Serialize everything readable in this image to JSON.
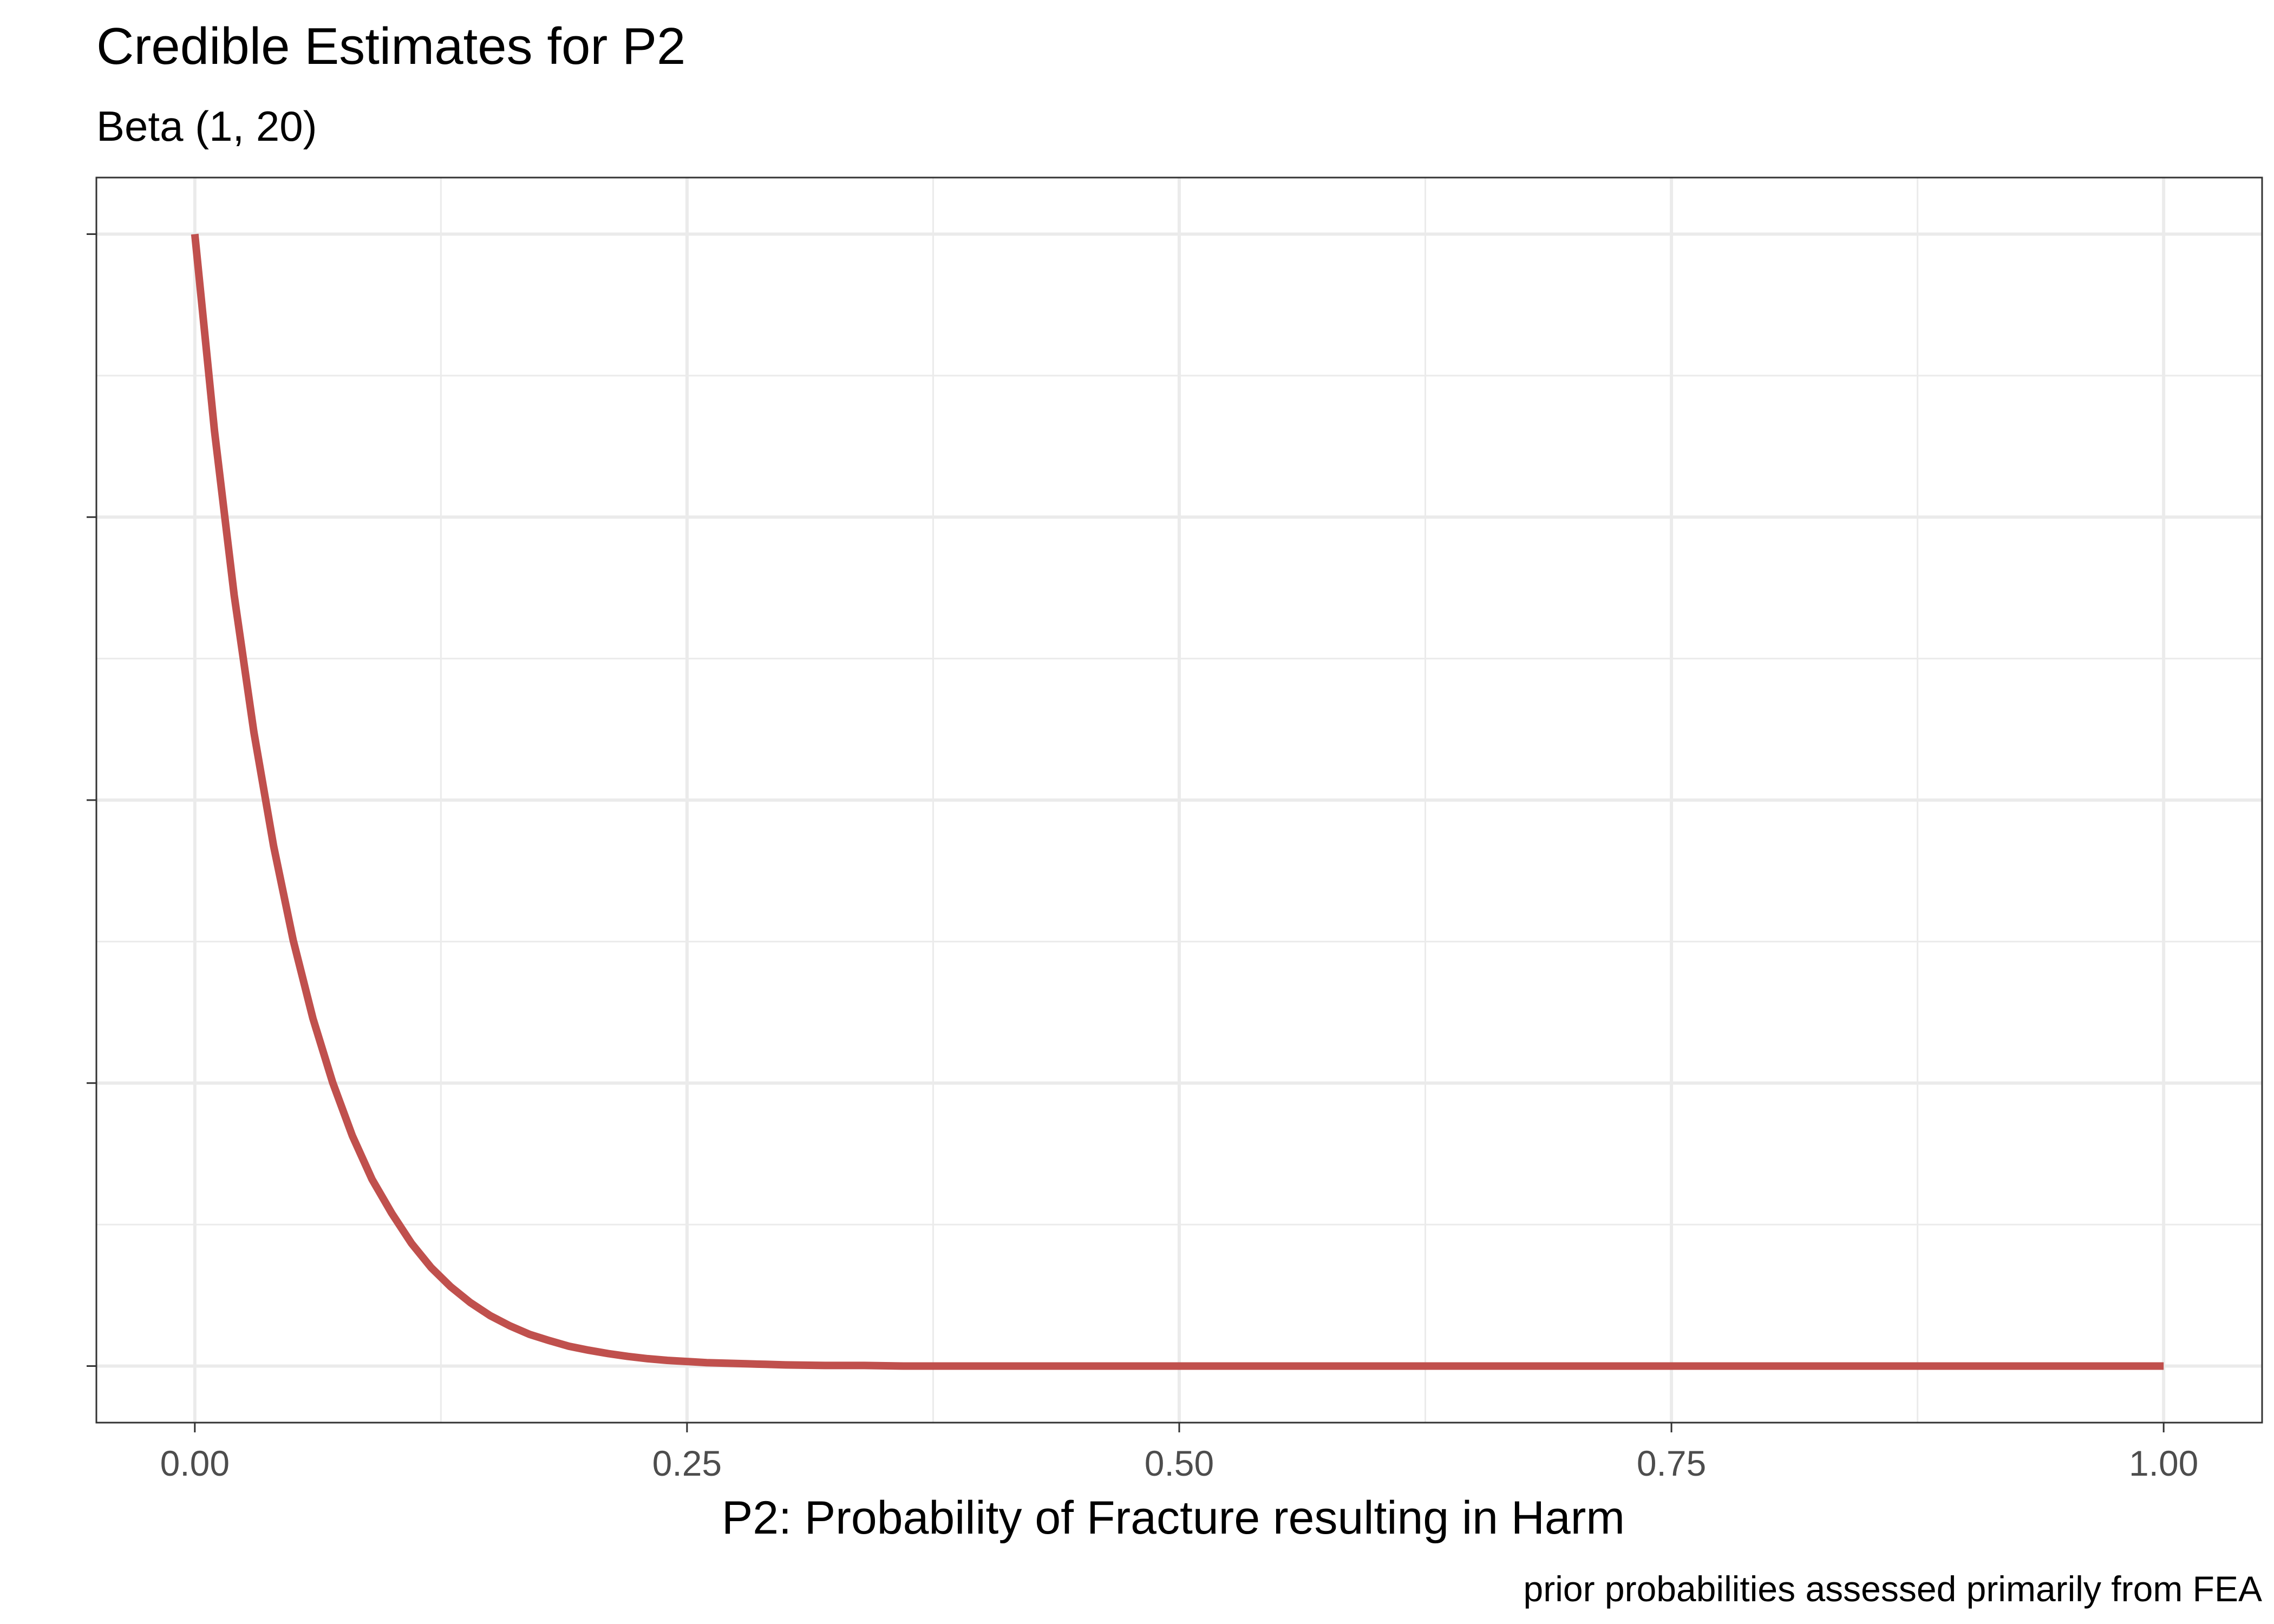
{
  "chart_data": {
    "type": "line",
    "title": "Credible Estimates for P2",
    "subtitle": "Beta (1, 20)",
    "xlabel": "P2: Probability of Fracture resulting in Harm",
    "ylabel": "",
    "caption": "prior probabilities assessed primarily from FEA",
    "distribution": {
      "family": "Beta",
      "alpha": 1,
      "beta": 20
    },
    "xlim": [
      -0.05,
      1.05
    ],
    "ylim": [
      -1,
      21
    ],
    "x_ticks": [
      0.0,
      0.25,
      0.5,
      0.75,
      1.0
    ],
    "x_tick_labels": [
      "0.00",
      "0.25",
      "0.50",
      "0.75",
      "1.00"
    ],
    "y_major_gridlines": [
      0,
      5,
      10,
      15,
      20
    ],
    "y_tick_labels_shown": false,
    "grid": true,
    "line_color": "#C0504D",
    "series": [
      {
        "x": [
          0.0,
          0.01,
          0.02,
          0.03,
          0.04,
          0.05,
          0.06,
          0.07,
          0.08,
          0.09,
          0.1,
          0.11,
          0.12,
          0.13,
          0.14,
          0.15,
          0.16,
          0.17,
          0.18,
          0.19,
          0.2,
          0.21,
          0.22,
          0.23,
          0.24,
          0.25,
          0.26,
          0.27,
          0.28,
          0.29,
          0.3,
          0.32,
          0.34,
          0.36,
          0.38,
          0.4,
          0.45,
          0.5,
          0.55,
          0.6,
          0.65,
          0.7,
          0.75,
          0.8,
          0.85,
          0.9,
          0.95,
          1.0
        ],
        "y": [
          20.0,
          16.52,
          13.62,
          11.2,
          9.19,
          7.52,
          6.14,
          5.01,
          4.07,
          3.3,
          2.7,
          2.17,
          1.74,
          1.4,
          1.12,
          0.89,
          0.71,
          0.56,
          0.45,
          0.35,
          0.28,
          0.22,
          0.17,
          0.13,
          0.1,
          0.08,
          0.06,
          0.05,
          0.04,
          0.03,
          0.02,
          0.01,
          0.01,
          0.0,
          0.0,
          0.0,
          0.0,
          0.0,
          0.0,
          0.0,
          0.0,
          0.0,
          0.0,
          0.0,
          0.0,
          0.0,
          0.0,
          0.0
        ]
      }
    ]
  }
}
